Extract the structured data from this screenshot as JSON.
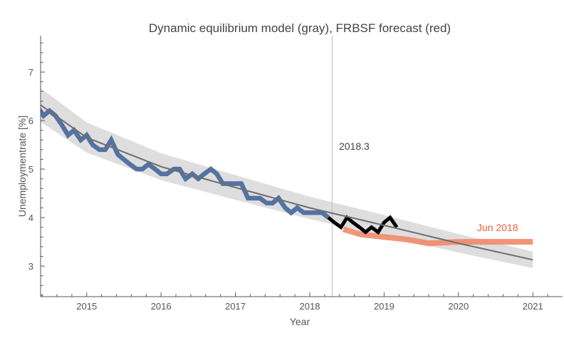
{
  "chart_data": {
    "type": "line",
    "title": "Dynamic equilibrium model (gray), FRBSF forecast (red)",
    "xlabel": "Year",
    "ylabel": "Unemploymentrate [%]",
    "xlim": [
      2014.38,
      2021.4
    ],
    "ylim": [
      2.37,
      7.75
    ],
    "x_ticks": [
      "2015",
      "2016",
      "2017",
      "2018",
      "2019",
      "2020",
      "2021"
    ],
    "y_ticks": [
      "3",
      "4",
      "5",
      "6",
      "7"
    ],
    "grid": false,
    "vline": {
      "x": 2018.3,
      "label": "2018.3"
    },
    "annotation": {
      "text": "Jun 2018",
      "x": 2020.25,
      "y": 3.72,
      "color": "#e8603c"
    },
    "colors": {
      "data": "#4c6c9e",
      "post_data": "#000000",
      "forecast": "#f08a6a",
      "model": "#6e6e6e",
      "band": "#dedede"
    },
    "series": [
      {
        "key": "model",
        "x": [
          2014.38,
          2015,
          2016,
          2017,
          2018,
          2019,
          2020,
          2021
        ],
        "y": [
          6.32,
          5.65,
          5.05,
          4.62,
          4.2,
          3.84,
          3.47,
          3.13
        ],
        "band_relative": 0.055
      },
      {
        "key": "data",
        "x": [
          2014.33,
          2014.42,
          2014.5,
          2014.58,
          2014.67,
          2014.75,
          2014.83,
          2014.92,
          2015.0,
          2015.08,
          2015.17,
          2015.25,
          2015.33,
          2015.42,
          2015.5,
          2015.58,
          2015.67,
          2015.75,
          2015.83,
          2015.92,
          2016.0,
          2016.08,
          2016.17,
          2016.25,
          2016.33,
          2016.42,
          2016.5,
          2016.58,
          2016.67,
          2016.75,
          2016.83,
          2016.92,
          2017.0,
          2017.08,
          2017.17,
          2017.25,
          2017.33,
          2017.42,
          2017.5,
          2017.58,
          2017.67,
          2017.75,
          2017.83,
          2017.92,
          2018.0,
          2018.08,
          2018.17,
          2018.25
        ],
        "y": [
          6.3,
          6.1,
          6.2,
          6.1,
          5.9,
          5.7,
          5.8,
          5.6,
          5.7,
          5.5,
          5.4,
          5.4,
          5.6,
          5.3,
          5.2,
          5.1,
          5.0,
          5.0,
          5.1,
          5.0,
          4.9,
          4.9,
          5.0,
          5.0,
          4.8,
          4.9,
          4.8,
          4.9,
          5.0,
          4.9,
          4.7,
          4.7,
          4.7,
          4.7,
          4.4,
          4.4,
          4.4,
          4.3,
          4.3,
          4.4,
          4.2,
          4.1,
          4.2,
          4.1,
          4.1,
          4.1,
          4.1,
          4.0
        ]
      },
      {
        "key": "post_data",
        "x": [
          2018.25,
          2018.33,
          2018.42,
          2018.5,
          2018.58,
          2018.67,
          2018.75,
          2018.83,
          2018.92,
          2019.0,
          2019.08,
          2019.17
        ],
        "y": [
          4.0,
          3.9,
          3.8,
          4.0,
          3.9,
          3.8,
          3.7,
          3.8,
          3.7,
          3.9,
          4.0,
          3.8
        ]
      },
      {
        "key": "forecast",
        "x": [
          2018.45,
          2018.7,
          2019.0,
          2019.3,
          2019.6,
          2020.0,
          2021.0
        ],
        "y": [
          3.76,
          3.65,
          3.6,
          3.55,
          3.47,
          3.5,
          3.5
        ]
      }
    ]
  }
}
